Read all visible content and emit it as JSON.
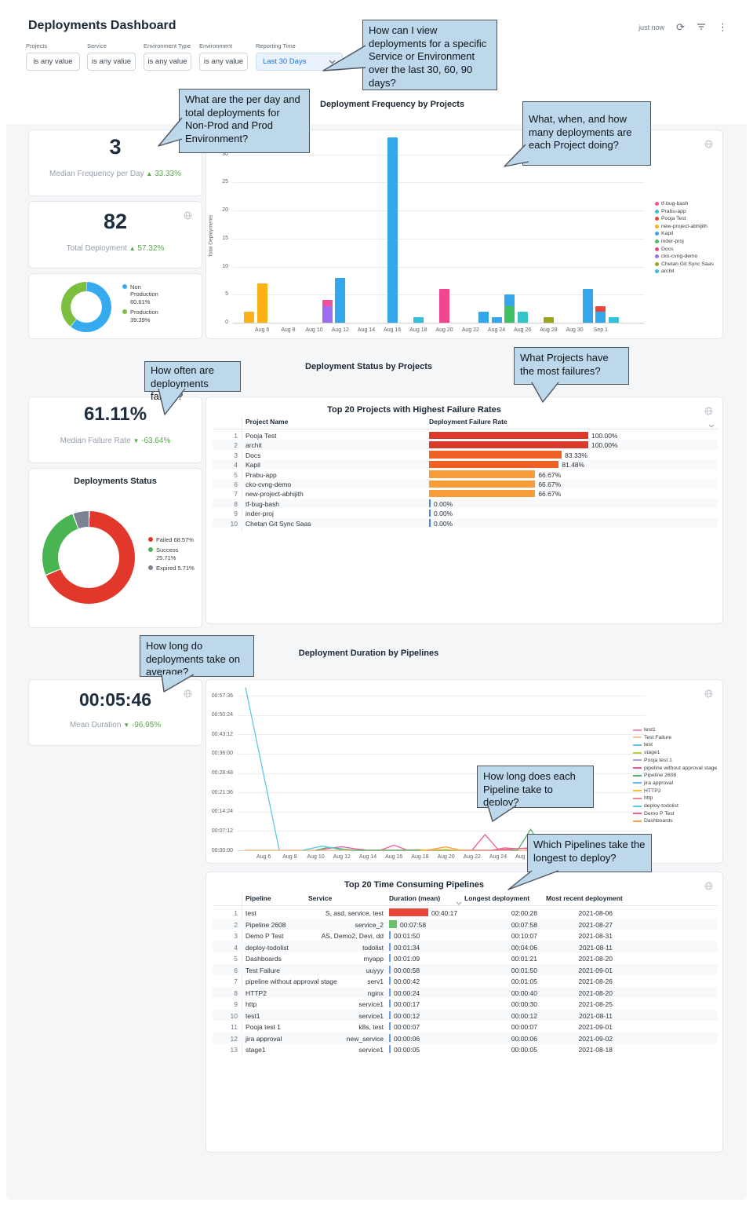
{
  "header": {
    "title": "Deployments Dashboard",
    "updated": "just now"
  },
  "filters": [
    {
      "label": "Projects",
      "value": "is any value"
    },
    {
      "label": "Service",
      "value": "is any value"
    },
    {
      "label": "Environment Type",
      "value": "is any value"
    },
    {
      "label": "Environment",
      "value": "is any value"
    },
    {
      "label": "Reporting Time",
      "value": "Last 30 Days"
    }
  ],
  "section_titles": {
    "frequency": "Deployment Frequency by Projects",
    "status": "Deployment Status by Projects",
    "duration": "Deployment Duration by Pipelines"
  },
  "tiles": {
    "median_frequency": {
      "value": "3",
      "label": "Median Frequency per Day",
      "delta": "33.33%",
      "arrow": "▲"
    },
    "total_deployment": {
      "value": "82",
      "label": "Total Deployment",
      "delta": "57.32%",
      "arrow": "▲"
    },
    "median_failure": {
      "value": "61.11%",
      "label": "Median Failure Rate",
      "delta": "-63.64%",
      "arrow": "▼"
    },
    "mean_duration": {
      "value": "00:05:46",
      "label": "Mean Duration",
      "delta": "-96.95%",
      "arrow": "▼"
    }
  },
  "callouts": [
    "How can I view deployments for a specific Service or Environment over the last 30, 60, 90 days?",
    "What are the per day and total deployments for Non-Prod and Prod Environment?",
    "What, when, and how many deployments are each Project doing?",
    "How often are deployments failing?",
    "What Projects have the most failures?",
    "How long do deployments take on average?",
    "How long does each Pipeline take to deploy?",
    "Which Pipelines take the longest to deploy?"
  ],
  "chart_data": [
    {
      "id": "deployment_frequency",
      "type": "bar",
      "stacked": true,
      "title": "Deployment Frequency by Projects",
      "ylabel": "Total Deployments",
      "ylim": [
        0,
        33
      ],
      "yticks": [
        0,
        5,
        10,
        15,
        20,
        25,
        30
      ],
      "x_tick_labels": [
        "Aug 6",
        "Aug 8",
        "Aug 10",
        "Aug 12",
        "Aug 14",
        "Aug 16",
        "Aug 18",
        "Aug 20",
        "Aug 22",
        "Aug 24",
        "Aug 26",
        "Aug 28",
        "Aug 30",
        "Sep 1"
      ],
      "legend": [
        {
          "name": "tf-bug-bash",
          "color": "#f0509c"
        },
        {
          "name": "Prabu-app",
          "color": "#35c4c8"
        },
        {
          "name": "Pooja Test",
          "color": "#e8463c"
        },
        {
          "name": "new-project-abhijith",
          "color": "#fcb216"
        },
        {
          "name": "Kapil",
          "color": "#34a7ea"
        },
        {
          "name": "inder-proj",
          "color": "#41bf63"
        },
        {
          "name": "Docs",
          "color": "#f0468e"
        },
        {
          "name": "cko-cvng-demo",
          "color": "#9b6ef0"
        },
        {
          "name": "Chetan Git Sync Saas",
          "color": "#9ba51a"
        },
        {
          "name": "archit",
          "color": "#33c0d8"
        }
      ],
      "bars": [
        {
          "date": "Aug 5",
          "day": 1,
          "segments": [
            {
              "project": "new-project-abhijith",
              "value": 2
            }
          ]
        },
        {
          "date": "Aug 6",
          "day": 2,
          "segments": [
            {
              "project": "new-project-abhijith",
              "value": 7
            }
          ]
        },
        {
          "date": "Aug 11",
          "day": 7,
          "segments": [
            {
              "project": "cko-cvng-demo",
              "value": 3
            },
            {
              "project": "tf-bug-bash",
              "value": 1
            }
          ]
        },
        {
          "date": "Aug 12",
          "day": 8,
          "segments": [
            {
              "project": "Kapil",
              "value": 8
            }
          ]
        },
        {
          "date": "Aug 16",
          "day": 12,
          "segments": [
            {
              "project": "Kapil",
              "value": 33
            }
          ]
        },
        {
          "date": "Aug 18",
          "day": 14,
          "segments": [
            {
              "project": "archit",
              "value": 1
            }
          ]
        },
        {
          "date": "Aug 20",
          "day": 16,
          "segments": [
            {
              "project": "Docs",
              "value": 6
            }
          ]
        },
        {
          "date": "Aug 23",
          "day": 19,
          "segments": [
            {
              "project": "Kapil",
              "value": 2
            }
          ]
        },
        {
          "date": "Aug 24",
          "day": 20,
          "segments": [
            {
              "project": "Kapil",
              "value": 1
            }
          ]
        },
        {
          "date": "Aug 25",
          "day": 21,
          "segments": [
            {
              "project": "inder-proj",
              "value": 3
            },
            {
              "project": "Kapil",
              "value": 2
            }
          ]
        },
        {
          "date": "Aug 26",
          "day": 22,
          "segments": [
            {
              "project": "Prabu-app",
              "value": 2
            }
          ]
        },
        {
          "date": "Aug 28",
          "day": 24,
          "segments": [
            {
              "project": "Chetan Git Sync Saas",
              "value": 1
            }
          ]
        },
        {
          "date": "Aug 31",
          "day": 27,
          "segments": [
            {
              "project": "Kapil",
              "value": 6
            }
          ]
        },
        {
          "date": "Sep 1",
          "day": 28,
          "segments": [
            {
              "project": "Kapil",
              "value": 2
            },
            {
              "project": "Pooja Test",
              "value": 1
            }
          ]
        },
        {
          "date": "Sep 2",
          "day": 29,
          "segments": [
            {
              "project": "archit",
              "value": 1
            }
          ]
        }
      ]
    },
    {
      "id": "environment_type_donut",
      "type": "pie",
      "slices": [
        {
          "label": "Non Production",
          "pct_label": "60.61%",
          "value": 60.61,
          "color": "#35aaee"
        },
        {
          "label": "Production",
          "pct_label": "39.39%",
          "value": 39.39,
          "color": "#7cbe3e"
        }
      ]
    },
    {
      "id": "deployments_status_donut",
      "type": "pie",
      "title": "Deployments Status",
      "slices": [
        {
          "label": "Failed",
          "pct_label": "68.57%",
          "value": 68.57,
          "color": "#e2372b"
        },
        {
          "label": "Success",
          "pct_label": "25.71%",
          "value": 25.71,
          "color": "#49b552"
        },
        {
          "label": "Expired",
          "pct_label": "5.71%",
          "value": 5.71,
          "color": "#7d8294"
        }
      ]
    },
    {
      "id": "failure_table",
      "type": "table",
      "title": "Top 20 Projects with Highest Failure Rates",
      "columns": [
        "Project Name",
        "Deployment Failure Rate"
      ],
      "rows": [
        {
          "rank": 1,
          "project": "Pooja Test",
          "rate": 100,
          "rate_label": "100.00%",
          "bar_color": "#d93a2b"
        },
        {
          "rank": 2,
          "project": "archit",
          "rate": 100,
          "rate_label": "100.00%",
          "bar_color": "#d93a2b"
        },
        {
          "rank": 3,
          "project": "Docs",
          "rate": 83.33,
          "rate_label": "83.33%",
          "bar_color": "#ef6223"
        },
        {
          "rank": 4,
          "project": "Kapil",
          "rate": 81.48,
          "rate_label": "81.48%",
          "bar_color": "#ef6223"
        },
        {
          "rank": 5,
          "project": "Prabu-app",
          "rate": 66.67,
          "rate_label": "66.67%",
          "bar_color": "#f89c37"
        },
        {
          "rank": 6,
          "project": "cko-cvng-demo",
          "rate": 66.67,
          "rate_label": "66.67%",
          "bar_color": "#f89c37"
        },
        {
          "rank": 7,
          "project": "new-project-abhijith",
          "rate": 66.67,
          "rate_label": "66.67%",
          "bar_color": "#f89c37"
        },
        {
          "rank": 8,
          "project": "tf-bug-bash",
          "rate": 0,
          "rate_label": "0.00%",
          "bar_color": "#4285f4"
        },
        {
          "rank": 9,
          "project": "inder-proj",
          "rate": 0,
          "rate_label": "0.00%",
          "bar_color": "#4285f4"
        },
        {
          "rank": 10,
          "project": "Chetan Git Sync Saas",
          "rate": 0,
          "rate_label": "0.00%",
          "bar_color": "#4285f4"
        }
      ]
    },
    {
      "id": "duration_lines",
      "type": "line",
      "title": "Deployment Duration by Pipelines",
      "ytick_labels": [
        "00:57:36",
        "00:50:24",
        "00:43:12",
        "00:36:00",
        "00:28:48",
        "00:21:36",
        "00:14:24",
        "00:07:12",
        "00:00:00"
      ],
      "x_tick_labels": [
        "Aug 6",
        "Aug 8",
        "Aug 10",
        "Aug 12",
        "Aug 14",
        "Aug 16",
        "Aug 18",
        "Aug 20",
        "Aug 22",
        "Aug 24",
        "Aug 26",
        "Aug 28",
        "Aug 30",
        "Sep 1"
      ],
      "series": [
        {
          "name": "test1",
          "color": "#f78db3",
          "points": [
            [
              4,
              3
            ],
            [
              7,
              3
            ]
          ]
        },
        {
          "name": "Test Failure",
          "color": "#fbc490",
          "points": [
            [
              0.5,
              4
            ],
            [
              28.5,
              4
            ]
          ]
        },
        {
          "name": "test",
          "color": "#5fc8e8",
          "points": [
            [
              0.6,
              3640
            ],
            [
              3.2,
              0
            ]
          ]
        },
        {
          "name": "stage1",
          "color": "#c0ca33",
          "points": [
            [
              12,
              2
            ],
            [
              14,
              14
            ],
            [
              15,
              2
            ]
          ]
        },
        {
          "name": "Pooja test 1",
          "color": "#b79ce0",
          "points": [
            [
              26,
              3
            ],
            [
              28,
              3
            ]
          ]
        },
        {
          "name": "pipeline without approval stage",
          "color": "#f0559c",
          "points": [
            [
              6,
              2
            ],
            [
              8,
              80
            ],
            [
              9,
              35
            ],
            [
              10,
              2
            ],
            [
              11,
              5
            ],
            [
              12,
              115
            ],
            [
              13,
              5
            ],
            [
              18,
              3
            ],
            [
              19,
              350
            ],
            [
              20,
              20
            ],
            [
              21,
              30
            ],
            [
              22,
              45
            ],
            [
              23,
              2
            ]
          ]
        },
        {
          "name": "Pipeline 2608",
          "color": "#57b25e",
          "points": [
            [
              6,
              2
            ],
            [
              7,
              70
            ],
            [
              8,
              30
            ],
            [
              9,
              2
            ],
            [
              21.5,
              2
            ],
            [
              22.5,
              470
            ],
            [
              23.5,
              2
            ]
          ]
        },
        {
          "name": "jira approval",
          "color": "#64b5f6",
          "points": [
            [
              27,
              4
            ],
            [
              29,
              4
            ]
          ]
        },
        {
          "name": "HTTP2",
          "color": "#fbc02d",
          "points": [
            [
              14,
              2
            ],
            [
              16,
              20
            ],
            [
              17,
              2
            ]
          ]
        },
        {
          "name": "http",
          "color": "#ef8a80",
          "points": [
            [
              17,
              2
            ],
            [
              21,
              2
            ]
          ]
        },
        {
          "name": "deploy-todolist",
          "color": "#4dd0e1",
          "points": [
            [
              5,
              2
            ],
            [
              6.5,
              95
            ],
            [
              7.5,
              40
            ],
            [
              8,
              2
            ]
          ]
        },
        {
          "name": "Demo P Test",
          "color": "#f06292",
          "points": [
            [
              19.5,
              2
            ],
            [
              20.5,
              55
            ],
            [
              21.5,
              35
            ],
            [
              22.5,
              60
            ],
            [
              23,
              25
            ],
            [
              24,
              2
            ],
            [
              26.5,
              15
            ],
            [
              27.5,
              2
            ]
          ]
        },
        {
          "name": "Dashboards",
          "color": "#fb9f4c",
          "points": [
            [
              14.5,
              2
            ],
            [
              16,
              78
            ],
            [
              17,
              8
            ],
            [
              18,
              2
            ]
          ]
        }
      ]
    },
    {
      "id": "pipelines_table",
      "type": "table",
      "title": "Top 20 Time Consuming Pipelines",
      "columns": [
        "Pipeline",
        "Service",
        "Duration (mean)",
        "Longest deployment",
        "Most recent deployment"
      ],
      "rows": [
        {
          "rank": 1,
          "pipeline": "test",
          "service": "S, asd, service, test",
          "duration": "00:40:17",
          "bar_color": "#e8483a",
          "longest": "02:00:28",
          "recent": "2021-08-06"
        },
        {
          "rank": 2,
          "pipeline": "Pipeline 2608",
          "service": "service_2",
          "duration": "00:07:58",
          "bar_color": "#6abf69",
          "longest": "00:07:58",
          "recent": "2021-08-27"
        },
        {
          "rank": 3,
          "pipeline": "Demo P Test",
          "service": "AS, Demo2, Devi, dd",
          "duration": "00:01:50",
          "bar_color": "#6c9bf2",
          "longest": "00:10:07",
          "recent": "2021-08-31"
        },
        {
          "rank": 4,
          "pipeline": "deploy-todolist",
          "service": "todolist",
          "duration": "00:01:34",
          "bar_color": "#6c9bf2",
          "longest": "00:04:06",
          "recent": "2021-08-11"
        },
        {
          "rank": 5,
          "pipeline": "Dashboards",
          "service": "myapp",
          "duration": "00:01:09",
          "bar_color": "#6c9bf2",
          "longest": "00:01:21",
          "recent": "2021-08-20"
        },
        {
          "rank": 6,
          "pipeline": "Test Failure",
          "service": "uuyyy",
          "duration": "00:00:58",
          "bar_color": "#6c9bf2",
          "longest": "00:01:50",
          "recent": "2021-09-01"
        },
        {
          "rank": 7,
          "pipeline": "pipeline without approval stage",
          "service": "serv1",
          "duration": "00:00:42",
          "bar_color": "#6c9bf2",
          "longest": "00:01:05",
          "recent": "2021-08-26"
        },
        {
          "rank": 8,
          "pipeline": "HTTP2",
          "service": "nginx",
          "duration": "00:00:24",
          "bar_color": "#6c9bf2",
          "longest": "00:00:40",
          "recent": "2021-08-20"
        },
        {
          "rank": 9,
          "pipeline": "http",
          "service": "service1",
          "duration": "00:00:17",
          "bar_color": "#6c9bf2",
          "longest": "00:00:30",
          "recent": "2021-08-25"
        },
        {
          "rank": 10,
          "pipeline": "test1",
          "service": "service1",
          "duration": "00:00:12",
          "bar_color": "#6c9bf2",
          "longest": "00:00:12",
          "recent": "2021-08-11"
        },
        {
          "rank": 11,
          "pipeline": "Pooja test 1",
          "service": "k8s, test",
          "duration": "00:00:07",
          "bar_color": "#6c9bf2",
          "longest": "00:00:07",
          "recent": "2021-09-01"
        },
        {
          "rank": 12,
          "pipeline": "jira approval",
          "service": "new_service",
          "duration": "00:00:06",
          "bar_color": "#6c9bf2",
          "longest": "00:00:06",
          "recent": "2021-09-02"
        },
        {
          "rank": 13,
          "pipeline": "stage1",
          "service": "service1",
          "duration": "00:00:05",
          "bar_color": "#6c9bf2",
          "longest": "00:00:05",
          "recent": "2021-08-18"
        }
      ]
    }
  ]
}
